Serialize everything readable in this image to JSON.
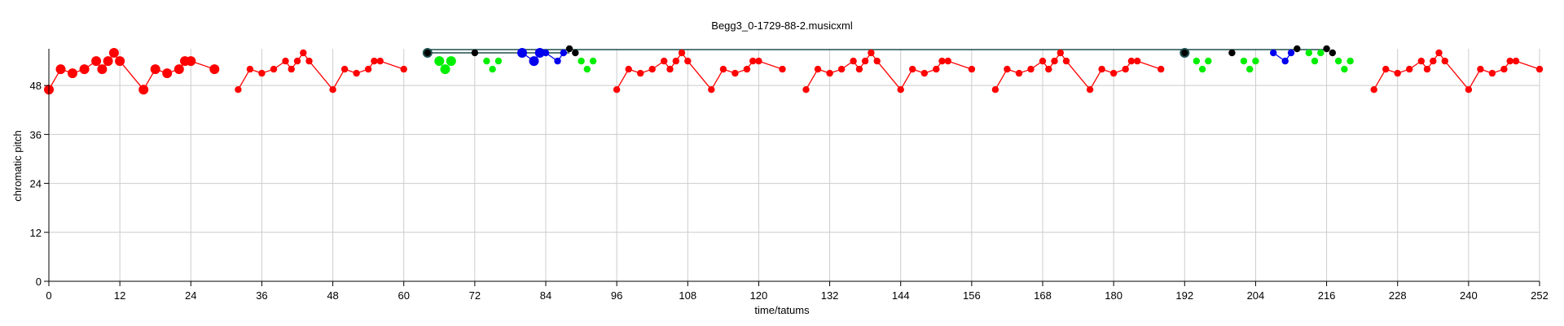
{
  "chart_data": {
    "type": "scatter",
    "title": "Begg3_0-1729-88-2.musicxml",
    "xlabel": "time/tatums",
    "ylabel": "chromatic pitch",
    "xlim": [
      0,
      252
    ],
    "ylim": [
      0,
      57
    ],
    "xticks": [
      0,
      12,
      24,
      36,
      48,
      60,
      72,
      84,
      96,
      108,
      120,
      132,
      144,
      156,
      168,
      180,
      192,
      204,
      216,
      228,
      240,
      252
    ],
    "yticks": [
      0,
      12,
      24,
      36,
      48
    ],
    "grid": true,
    "colors": {
      "red": "#ff0000",
      "green": "#00ee00",
      "blue": "#0000ee",
      "black": "#000000",
      "connector": "#1f4f4f"
    },
    "series": [
      {
        "color": "red",
        "connected": true,
        "points": [
          [
            0,
            47,
            "l"
          ],
          [
            2,
            52,
            "l"
          ],
          [
            4,
            51,
            "l"
          ],
          [
            6,
            52,
            "l"
          ],
          [
            8,
            54,
            "l"
          ],
          [
            9,
            52,
            "l"
          ],
          [
            10,
            54,
            "l"
          ],
          [
            11,
            56,
            "l"
          ],
          [
            12,
            54,
            "l"
          ],
          [
            16,
            47,
            "l"
          ],
          [
            18,
            52,
            "l"
          ],
          [
            20,
            51,
            "l"
          ],
          [
            22,
            52,
            "l"
          ],
          [
            23,
            54,
            "l"
          ],
          [
            24,
            54,
            "l"
          ],
          [
            28,
            52,
            "l"
          ]
        ]
      },
      {
        "color": "red",
        "connected": true,
        "points": [
          [
            32,
            47
          ],
          [
            34,
            52
          ],
          [
            36,
            51
          ],
          [
            38,
            52
          ],
          [
            40,
            54
          ],
          [
            41,
            52
          ],
          [
            42,
            54
          ],
          [
            43,
            56
          ],
          [
            44,
            54
          ],
          [
            48,
            47
          ],
          [
            50,
            52
          ],
          [
            52,
            51
          ],
          [
            54,
            52
          ],
          [
            55,
            54
          ],
          [
            56,
            54
          ],
          [
            60,
            52
          ]
        ]
      },
      {
        "color": "red",
        "connected": true,
        "points": [
          [
            96,
            47
          ],
          [
            98,
            52
          ],
          [
            100,
            51
          ],
          [
            102,
            52
          ],
          [
            104,
            54
          ],
          [
            105,
            52
          ],
          [
            106,
            54
          ],
          [
            107,
            56
          ],
          [
            108,
            54
          ],
          [
            112,
            47
          ],
          [
            114,
            52
          ],
          [
            116,
            51
          ],
          [
            118,
            52
          ],
          [
            119,
            54
          ],
          [
            120,
            54
          ],
          [
            124,
            52
          ]
        ]
      },
      {
        "color": "red",
        "connected": true,
        "points": [
          [
            128,
            47
          ],
          [
            130,
            52
          ],
          [
            132,
            51
          ],
          [
            134,
            52
          ],
          [
            136,
            54
          ],
          [
            137,
            52
          ],
          [
            138,
            54
          ],
          [
            139,
            56
          ],
          [
            140,
            54
          ],
          [
            144,
            47
          ],
          [
            146,
            52
          ],
          [
            148,
            51
          ],
          [
            150,
            52
          ],
          [
            151,
            54
          ],
          [
            152,
            54
          ],
          [
            156,
            52
          ]
        ]
      },
      {
        "color": "red",
        "connected": true,
        "points": [
          [
            160,
            47
          ],
          [
            162,
            52
          ],
          [
            164,
            51
          ],
          [
            166,
            52
          ],
          [
            168,
            54
          ],
          [
            169,
            52
          ],
          [
            170,
            54
          ],
          [
            171,
            56
          ],
          [
            172,
            54
          ],
          [
            176,
            47
          ],
          [
            178,
            52
          ],
          [
            180,
            51
          ],
          [
            182,
            52
          ],
          [
            183,
            54
          ],
          [
            184,
            54
          ],
          [
            188,
            52
          ]
        ]
      },
      {
        "color": "red",
        "connected": true,
        "points": [
          [
            224,
            47
          ],
          [
            226,
            52
          ],
          [
            228,
            51
          ],
          [
            230,
            52
          ],
          [
            232,
            54
          ],
          [
            233,
            52
          ],
          [
            234,
            54
          ],
          [
            235,
            56
          ],
          [
            236,
            54
          ],
          [
            240,
            47
          ],
          [
            242,
            52
          ],
          [
            244,
            51
          ],
          [
            246,
            52
          ],
          [
            247,
            54
          ],
          [
            248,
            54
          ],
          [
            252,
            52
          ]
        ]
      },
      {
        "color": "green",
        "connected": false,
        "points": [
          [
            66,
            54,
            "l"
          ],
          [
            67,
            52,
            "l"
          ],
          [
            68,
            54,
            "l"
          ],
          [
            74,
            54
          ],
          [
            75,
            52
          ],
          [
            76,
            54
          ],
          [
            90,
            54
          ],
          [
            91,
            52
          ],
          [
            92,
            54
          ],
          [
            194,
            54
          ],
          [
            195,
            52
          ],
          [
            196,
            54
          ],
          [
            202,
            54
          ],
          [
            203,
            52
          ],
          [
            204,
            54
          ],
          [
            213,
            56
          ],
          [
            214,
            54
          ],
          [
            215,
            56
          ],
          [
            218,
            54
          ],
          [
            219,
            52
          ],
          [
            220,
            54
          ]
        ]
      },
      {
        "color": "blue",
        "connected": true,
        "points": [
          [
            80,
            56,
            "l"
          ],
          [
            82,
            54,
            "l"
          ],
          [
            83,
            56,
            "l"
          ],
          [
            84,
            56
          ],
          [
            86,
            54
          ],
          [
            87,
            56
          ],
          [
            207,
            56
          ],
          [
            209,
            54
          ],
          [
            210,
            56
          ]
        ]
      },
      {
        "color": "black",
        "connected": false,
        "points": [
          [
            64,
            56,
            "l"
          ],
          [
            72,
            56
          ],
          [
            88,
            57
          ],
          [
            89,
            56
          ],
          [
            192,
            56,
            "l"
          ],
          [
            200,
            56
          ],
          [
            211,
            57
          ],
          [
            216,
            57
          ],
          [
            217,
            56
          ]
        ]
      }
    ],
    "pitch_spans": [
      [
        64,
        88,
        56
      ],
      [
        64,
        192,
        56.8
      ],
      [
        192,
        216,
        56.8
      ]
    ]
  }
}
